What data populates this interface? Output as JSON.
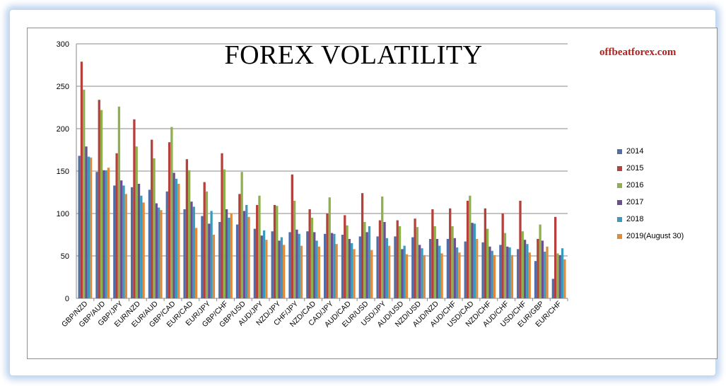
{
  "website": "offbeatforex.com",
  "chart_data": {
    "type": "bar",
    "title": "FOREX VOLATILITY",
    "xlabel": "",
    "ylabel": "",
    "ylim": [
      0,
      300
    ],
    "yticks": [
      0,
      50,
      100,
      150,
      200,
      250,
      300
    ],
    "grid": true,
    "legend_position": "right",
    "categories": [
      "GBP/NZD",
      "GBP/AUD",
      "GBP/JPY",
      "EUR/NZD",
      "EUR/AUD",
      "GBP/CAD",
      "EUR/CAD",
      "EUR/JPY",
      "GBP/CHF",
      "GBP/USD",
      "AUD/JPY",
      "NZD/JPY",
      "CHF/JPY",
      "NZD/CAD",
      "CAD/JPY",
      "AUD/CAD",
      "EUR/USD",
      "USD/JPY",
      "AUD/USD",
      "NZD/USD",
      "AUD/NZD",
      "AUD/CHF",
      "USD/CAD",
      "NZD/CHF",
      "AUD/CHF",
      "USD/CHF",
      "EUR/GBP",
      "EUR/CHF"
    ],
    "series": [
      {
        "name": "2014",
        "color": "#4f6ea8",
        "values": [
          168,
          149,
          133,
          131,
          128,
          126,
          105,
          97,
          90,
          87,
          82,
          79,
          78,
          79,
          76,
          75,
          73,
          73,
          73,
          72,
          70,
          70,
          67,
          66,
          63,
          58,
          44,
          23
        ]
      },
      {
        "name": "2015",
        "color": "#b5403c",
        "values": [
          279,
          234,
          171,
          211,
          187,
          184,
          164,
          137,
          171,
          123,
          110,
          110,
          146,
          105,
          100,
          98,
          124,
          92,
          92,
          94,
          105,
          106,
          115,
          106,
          100,
          115,
          70,
          96
        ]
      },
      {
        "name": "2016",
        "color": "#8fb04c",
        "values": [
          246,
          222,
          226,
          179,
          165,
          202,
          151,
          126,
          152,
          149,
          121,
          109,
          115,
          95,
          119,
          86,
          90,
          120,
          85,
          84,
          85,
          85,
          121,
          82,
          77,
          79,
          87,
          53
        ]
      },
      {
        "name": "2017",
        "color": "#6a4f93",
        "values": [
          179,
          151,
          139,
          135,
          112,
          148,
          114,
          88,
          105,
          103,
          74,
          68,
          81,
          78,
          77,
          70,
          78,
          90,
          58,
          63,
          70,
          71,
          89,
          61,
          61,
          69,
          68,
          51
        ]
      },
      {
        "name": "2018",
        "color": "#3a9bbd",
        "values": [
          167,
          151,
          133,
          121,
          107,
          141,
          108,
          103,
          95,
          110,
          80,
          72,
          76,
          68,
          76,
          65,
          85,
          71,
          62,
          59,
          62,
          60,
          88,
          56,
          60,
          64,
          55,
          59
        ]
      },
      {
        "name": "2019(August 30)",
        "color": "#e08a3a",
        "values": [
          166,
          154,
          123,
          113,
          104,
          135,
          83,
          75,
          100,
          96,
          69,
          63,
          62,
          61,
          64,
          58,
          57,
          62,
          52,
          51,
          53,
          54,
          70,
          51,
          51,
          54,
          61,
          46
        ]
      }
    ]
  }
}
